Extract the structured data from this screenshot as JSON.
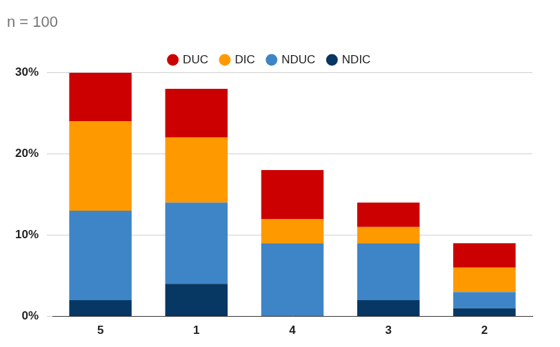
{
  "chart_data": {
    "type": "bar",
    "title": "n = 100",
    "categories": [
      "5",
      "1",
      "4",
      "3",
      "2"
    ],
    "series": [
      {
        "name": "DUC",
        "color": "#cc0000",
        "values": [
          6,
          6,
          6,
          3,
          3
        ]
      },
      {
        "name": "DIC",
        "color": "#ff9900",
        "values": [
          11,
          8,
          3,
          2,
          3
        ]
      },
      {
        "name": "NDUC",
        "color": "#3d85c6",
        "values": [
          11,
          10,
          9,
          7,
          2
        ]
      },
      {
        "name": "NDIC",
        "color": "#073763",
        "values": [
          2,
          4,
          0,
          2,
          1
        ]
      }
    ],
    "ylim": [
      0,
      30
    ],
    "yticks": [
      {
        "value": 0,
        "label": "0%"
      },
      {
        "value": 10,
        "label": "10%"
      },
      {
        "value": 20,
        "label": "20%"
      },
      {
        "value": 30,
        "label": "30%"
      }
    ],
    "stacked": true,
    "grid": true,
    "legend": "top"
  }
}
